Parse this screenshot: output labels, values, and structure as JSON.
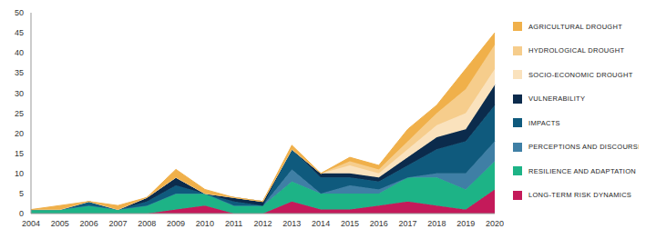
{
  "chart_data": {
    "type": "area",
    "stacked": true,
    "legend": "right",
    "categories": [
      "2004",
      "2005",
      "2006",
      "2007",
      "2008",
      "2009",
      "2010",
      "2011",
      "2012",
      "2013",
      "2014",
      "2015",
      "2016",
      "2017",
      "2018",
      "2019",
      "2020"
    ],
    "ylim": [
      0,
      50
    ],
    "yticks": [
      0,
      5,
      10,
      15,
      20,
      25,
      30,
      35,
      40,
      45,
      50
    ],
    "series": [
      {
        "name": "AGRICULTURAL DROUGHT",
        "color": "#f0b04a",
        "values": [
          0,
          1,
          0,
          1,
          0,
          2,
          1,
          0,
          0,
          1,
          0,
          1,
          1,
          3,
          2,
          5,
          3
        ]
      },
      {
        "name": "HYDROLOGICAL DROUGHT",
        "color": "#f6cd8c",
        "values": [
          0,
          0,
          0,
          0,
          0,
          0,
          0,
          0,
          0,
          0,
          0,
          1,
          1,
          2,
          3,
          6,
          6
        ]
      },
      {
        "name": "SOCIO-ECONOMIC DROUGHT",
        "color": "#fae2bd",
        "values": [
          0,
          0,
          0,
          0,
          0,
          0,
          0,
          0,
          0,
          0,
          0,
          2,
          1,
          2,
          3,
          4,
          4
        ]
      },
      {
        "name": "VULNERABILITY",
        "color": "#0b2b4c",
        "values": [
          0,
          0,
          0,
          0,
          1,
          2,
          0,
          1,
          1,
          0,
          1,
          1,
          1,
          2,
          3,
          3,
          5
        ]
      },
      {
        "name": "IMPACTS",
        "color": "#0f5a7d",
        "values": [
          0,
          0,
          1,
          0,
          1,
          2,
          0,
          1,
          0,
          5,
          4,
          2,
          2,
          3,
          6,
          8,
          9
        ]
      },
      {
        "name": "PERCEPTIONS AND DISCOURSES",
        "color": "#3f7fa5",
        "values": [
          0,
          0,
          0,
          0,
          0,
          0,
          0,
          0,
          0,
          3,
          0,
          2,
          1,
          0,
          1,
          4,
          5
        ]
      },
      {
        "name": "RESILIENCE AND ADAPTATION",
        "color": "#1db386",
        "values": [
          1,
          1,
          2,
          1,
          2,
          4,
          3,
          2,
          2,
          5,
          4,
          4,
          3,
          6,
          7,
          5,
          7
        ]
      },
      {
        "name": "LONG-TERM RISK DYNAMICS",
        "color": "#c41a5a",
        "values": [
          0,
          0,
          0,
          0,
          0,
          1,
          2,
          0,
          0,
          3,
          1,
          1,
          2,
          3,
          2,
          1,
          6
        ]
      }
    ]
  }
}
